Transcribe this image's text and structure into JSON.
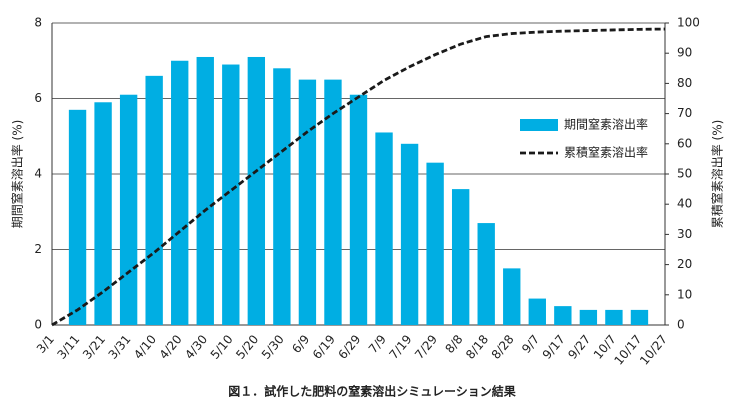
{
  "chart_data": {
    "type": "bar_line",
    "title": "図１．試作した肥料の窒素溶出シミュレーション結果",
    "ylabel": "期間窒素溶出率 (%)",
    "y2label": "累積窒素溶出率 (%)",
    "categories": [
      "3/1",
      "3/11",
      "3/21",
      "3/31",
      "4/10",
      "4/20",
      "4/30",
      "5/10",
      "5/20",
      "5/30",
      "6/9",
      "6/19",
      "6/29",
      "7/9",
      "7/19",
      "7/29",
      "8/8",
      "8/18",
      "8/28",
      "9/7",
      "9/17",
      "9/27",
      "10/7",
      "10/17",
      "10/27"
    ],
    "series": [
      {
        "name": "期間窒素溶出率",
        "type": "bar",
        "color": "#00aee3",
        "values": [
          null,
          5.7,
          5.9,
          6.1,
          6.6,
          7.0,
          7.1,
          6.9,
          7.1,
          6.8,
          6.5,
          6.5,
          6.1,
          5.1,
          4.8,
          4.3,
          3.6,
          2.7,
          1.5,
          0.7,
          0.5,
          0.4,
          0.4,
          0.4,
          null
        ]
      },
      {
        "name": "累積窒素溶出率",
        "type": "line",
        "color": "#1a1a1a",
        "axis": "y2",
        "values": [
          0,
          5,
          11,
          17.5,
          24,
          31,
          38,
          44.5,
          51,
          57.5,
          64,
          70,
          75.5,
          81,
          85.5,
          89.5,
          93,
          95.5,
          96.5,
          97,
          97.3,
          97.5,
          97.7,
          97.9,
          98
        ]
      }
    ],
    "ylim": [
      0,
      8
    ],
    "yticks": [
      0,
      2,
      4,
      6,
      8
    ],
    "y2lim": [
      0,
      100
    ],
    "y2ticks": [
      0,
      10,
      20,
      30,
      40,
      50,
      60,
      70,
      80,
      90,
      100
    ],
    "grid": true,
    "legend": "right"
  }
}
